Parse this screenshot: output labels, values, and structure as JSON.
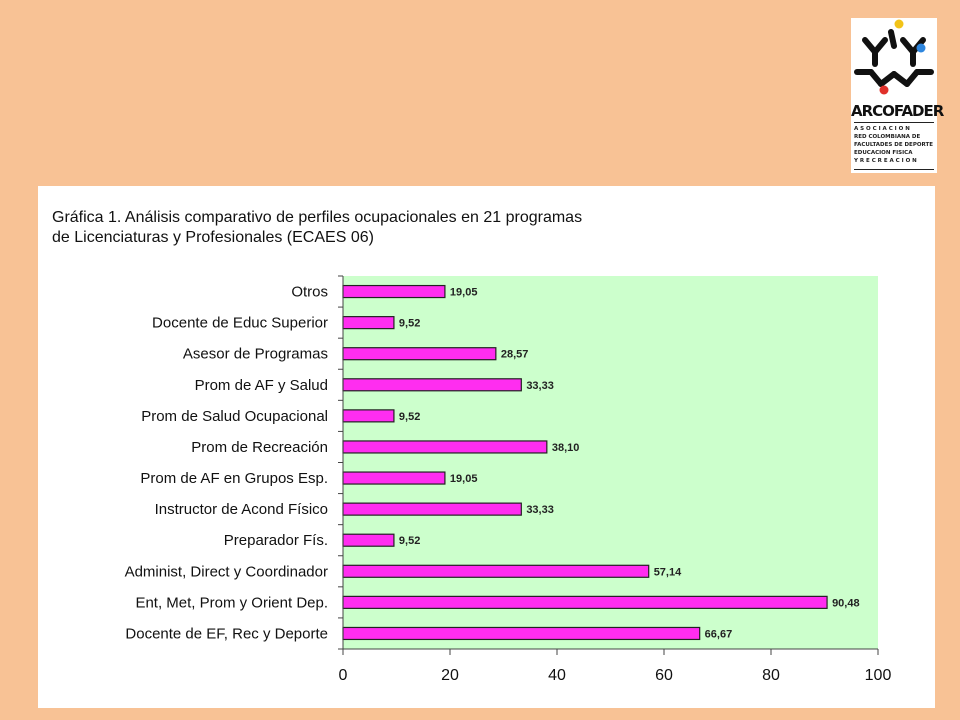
{
  "logo": {
    "name": "ARCOFADER",
    "subtitle_lines": [
      "A S O C I A C I O N",
      "RED COLOMBIANA DE",
      "FACULTADES DE DEPORTE",
      "EDUCACION FISICA",
      "Y   R E C R E A C I O N"
    ]
  },
  "chart_data": {
    "type": "bar",
    "orientation": "horizontal",
    "title_lines": [
      "Gráfica 1. Análisis comparativo de perfiles ocupacionales en 21 programas",
      "de Licenciaturas y Profesionales (ECAES 06)"
    ],
    "categories": [
      "Otros",
      "Docente de Educ Superior",
      "Asesor de Programas",
      "Prom de AF y Salud",
      "Prom de Salud Ocupacional",
      "Prom de Recreación",
      "Prom de AF en Grupos Esp.",
      "Instructor de Acond Físico",
      "Preparador Fís.",
      "Administ, Direct y Coordinador",
      "Ent, Met, Prom y Orient Dep.",
      "Docente de EF, Rec y Deporte"
    ],
    "values": [
      19.05,
      9.52,
      28.57,
      33.33,
      9.52,
      38.1,
      19.05,
      33.33,
      9.52,
      57.14,
      90.48,
      66.67
    ],
    "value_labels": [
      "19,05",
      "9,52",
      "28,57",
      "33,33",
      "9,52",
      "38,10",
      "19,05",
      "33,33",
      "9,52",
      "57,14",
      "90,48",
      "66,67"
    ],
    "xlim": [
      0,
      100
    ],
    "xticks": [
      0,
      20,
      40,
      60,
      80,
      100
    ],
    "grid": false,
    "colors": {
      "bar": "#FF2DF0",
      "bar_outline": "#222222",
      "plot_background": "#CCFFCC",
      "slide_background": "#F8C295"
    }
  }
}
